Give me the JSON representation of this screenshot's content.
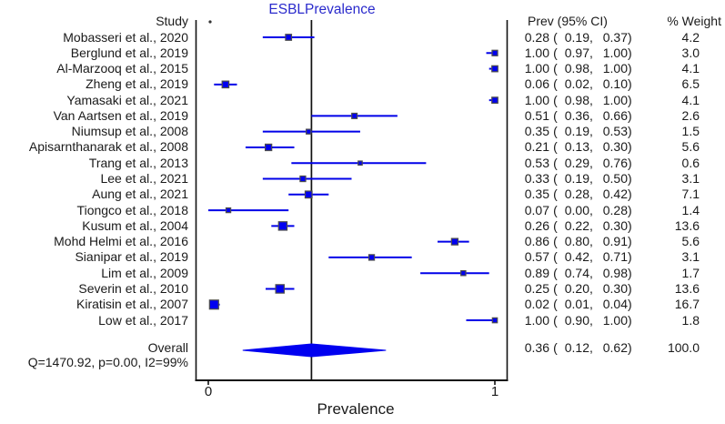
{
  "figure": {
    "title": "ESBLPrevalence",
    "column_headers": {
      "study": "Study",
      "ci": "Prev (95% CI)",
      "weight": "% Weight"
    },
    "overall_label": "Overall",
    "heterogeneity_text": "Q=1470.92, p=0.00, I2=99%",
    "x_axis": {
      "label": "Prevalence",
      "tick_labels": [
        "0",
        "1"
      ]
    }
  },
  "colors": {
    "title": "#2a2acc",
    "marker_fill": "#0000f0",
    "marker_stroke": "#4d4d4d",
    "ci_line": "#0000e8",
    "diamond": "#0000f0",
    "axis": "#111111",
    "text": "#1a1a1a"
  },
  "chart_data": {
    "type": "forest",
    "title": "ESBLPrevalence",
    "xlabel": "Prevalence",
    "xlim": [
      0,
      1
    ],
    "x_ticks": [
      0,
      1
    ],
    "reference_line": 0.36,
    "legend_position": "none",
    "grid": false,
    "studies": [
      {
        "label": "Mobasseri et al., 2020",
        "prev": 0.28,
        "ci_low": 0.19,
        "ci_high": 0.37,
        "weight": 4.2
      },
      {
        "label": "Berglund et al., 2019",
        "prev": 1.0,
        "ci_low": 0.97,
        "ci_high": 1.0,
        "weight": 3.0
      },
      {
        "label": "Al-Marzooq et al., 2015",
        "prev": 1.0,
        "ci_low": 0.98,
        "ci_high": 1.0,
        "weight": 4.1
      },
      {
        "label": "Zheng et al., 2019",
        "prev": 0.06,
        "ci_low": 0.02,
        "ci_high": 0.1,
        "weight": 6.5
      },
      {
        "label": "Yamasaki et al., 2021",
        "prev": 1.0,
        "ci_low": 0.98,
        "ci_high": 1.0,
        "weight": 4.1
      },
      {
        "label": "Van Aartsen et al., 2019",
        "prev": 0.51,
        "ci_low": 0.36,
        "ci_high": 0.66,
        "weight": 2.6
      },
      {
        "label": "Niumsup et al., 2008",
        "prev": 0.35,
        "ci_low": 0.19,
        "ci_high": 0.53,
        "weight": 1.5
      },
      {
        "label": "Apisarnthanarak et al., 2008",
        "prev": 0.21,
        "ci_low": 0.13,
        "ci_high": 0.3,
        "weight": 5.6
      },
      {
        "label": "Trang et al., 2013",
        "prev": 0.53,
        "ci_low": 0.29,
        "ci_high": 0.76,
        "weight": 0.6
      },
      {
        "label": "Lee et al., 2021",
        "prev": 0.33,
        "ci_low": 0.19,
        "ci_high": 0.5,
        "weight": 3.1
      },
      {
        "label": "Aung et al., 2021",
        "prev": 0.35,
        "ci_low": 0.28,
        "ci_high": 0.42,
        "weight": 7.1
      },
      {
        "label": "Tiongco et al., 2018",
        "prev": 0.07,
        "ci_low": 0.0,
        "ci_high": 0.28,
        "weight": 1.4
      },
      {
        "label": "Kusum et al., 2004",
        "prev": 0.26,
        "ci_low": 0.22,
        "ci_high": 0.3,
        "weight": 13.6
      },
      {
        "label": "Mohd Helmi et al., 2016",
        "prev": 0.86,
        "ci_low": 0.8,
        "ci_high": 0.91,
        "weight": 5.6
      },
      {
        "label": "Sianipar et al., 2019",
        "prev": 0.57,
        "ci_low": 0.42,
        "ci_high": 0.71,
        "weight": 3.1
      },
      {
        "label": "Lim et al., 2009",
        "prev": 0.89,
        "ci_low": 0.74,
        "ci_high": 0.98,
        "weight": 1.7
      },
      {
        "label": "Severin et al., 2010",
        "prev": 0.25,
        "ci_low": 0.2,
        "ci_high": 0.3,
        "weight": 13.6
      },
      {
        "label": "Kiratisin et al., 2007",
        "prev": 0.02,
        "ci_low": 0.01,
        "ci_high": 0.04,
        "weight": 16.7
      },
      {
        "label": "Low et al., 2017",
        "prev": 1.0,
        "ci_low": 0.9,
        "ci_high": 1.0,
        "weight": 1.8
      }
    ],
    "overall": {
      "label": "Overall",
      "prev": 0.36,
      "ci_low": 0.12,
      "ci_high": 0.62,
      "weight": 100.0
    },
    "heterogeneity": "Q=1470.92, p=0.00, I2=99%"
  }
}
